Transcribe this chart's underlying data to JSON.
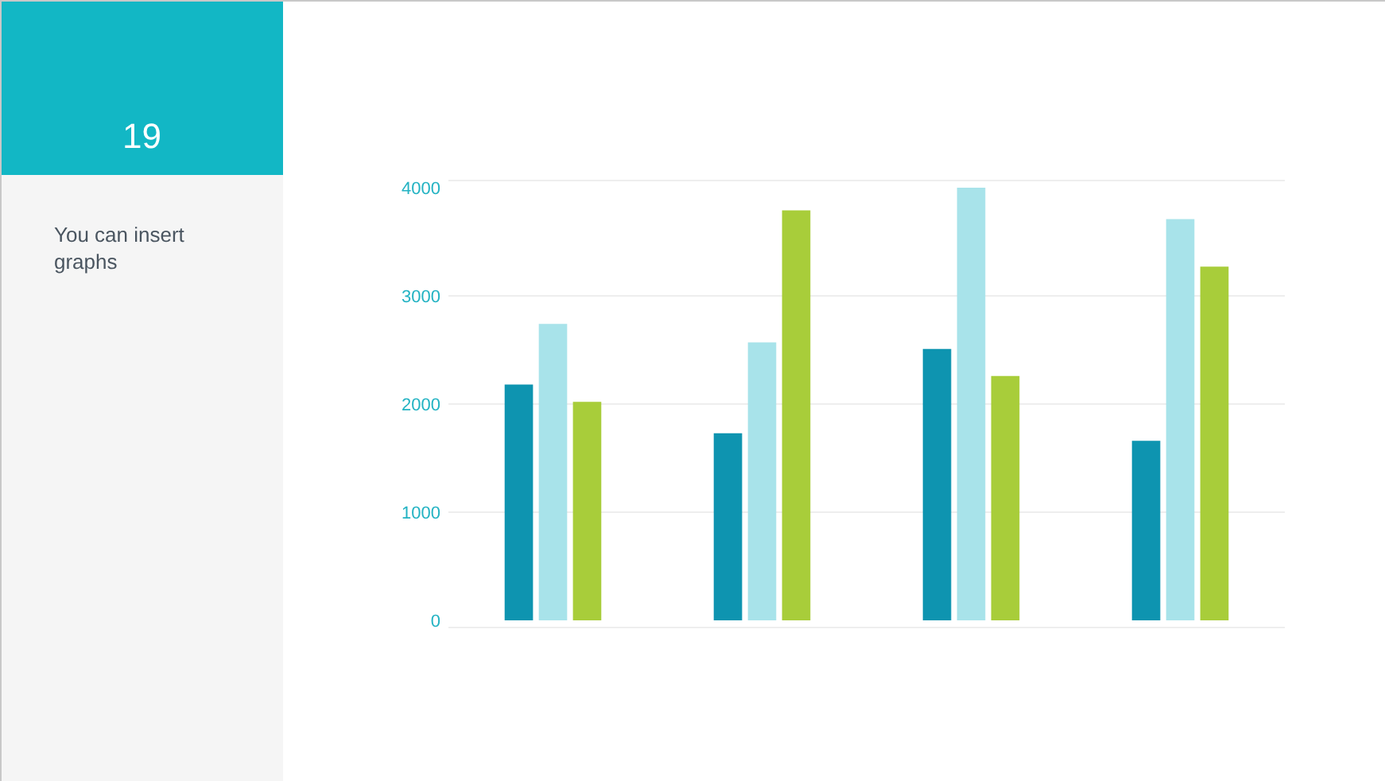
{
  "chart_data": {
    "type": "bar",
    "categories": [
      null,
      null,
      null,
      null
    ],
    "series": [
      {
        "color": "#0e94b0",
        "values": [
          2180,
          1730,
          2510,
          1660
        ]
      },
      {
        "color": "#a8e3ea",
        "values": [
          2740,
          2570,
          4000,
          3710
        ]
      },
      {
        "color": "#a8cd3a",
        "values": [
          2020,
          3790,
          2260,
          3270
        ]
      }
    ],
    "ylim": [
      0,
      4000
    ],
    "yticks": [
      0,
      1000,
      2000,
      3000,
      4000
    ],
    "grid": "y",
    "annotations": [
      "19",
      "You can insert graphs"
    ]
  }
}
